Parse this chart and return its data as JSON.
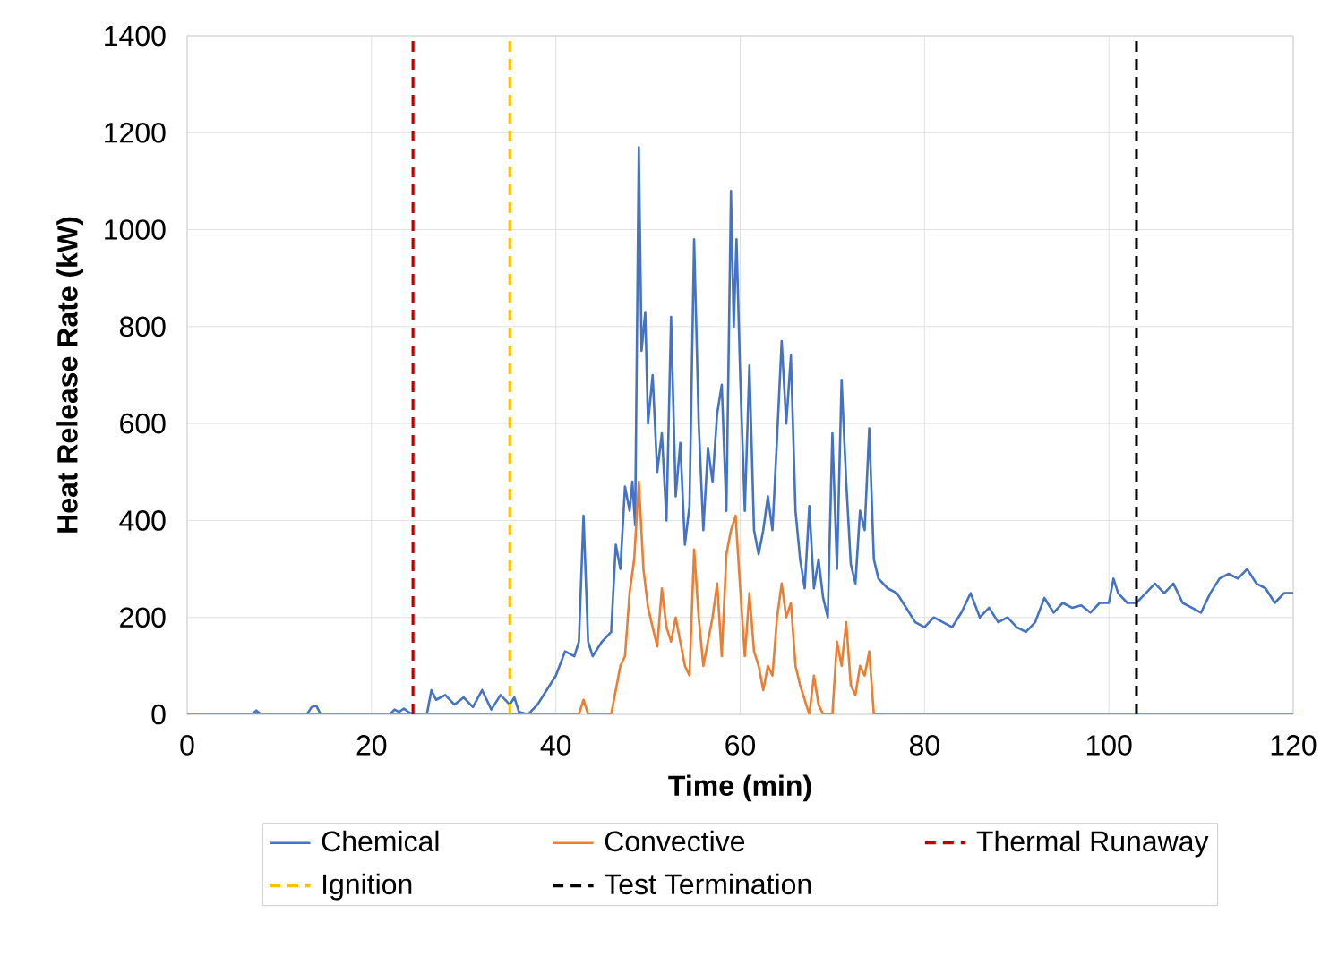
{
  "chart_data": {
    "type": "line",
    "xlabel": "Time (min)",
    "ylabel": "Heat Release Rate (kW)",
    "xlim": [
      0,
      120
    ],
    "xticks": [
      0,
      20,
      40,
      60,
      80,
      100,
      120
    ],
    "ylim": [
      0,
      1400
    ],
    "yticks": [
      0,
      200,
      400,
      600,
      800,
      1000,
      1200,
      1400
    ],
    "grid": true,
    "legend": "bottom",
    "line_style": "solid",
    "series": [
      {
        "name": "Chemical",
        "color": "#4472c4",
        "x": [
          0,
          7,
          7.5,
          8,
          13,
          13.5,
          14,
          14.5,
          22,
          22.5,
          23,
          23.5,
          24,
          24.5,
          26,
          26.5,
          27,
          28,
          29,
          30,
          31,
          32,
          33,
          34,
          35,
          35.5,
          36,
          37,
          38,
          39,
          40,
          41,
          42,
          42.5,
          43,
          43.5,
          44,
          45,
          46,
          46.5,
          47,
          47.5,
          48,
          48.3,
          48.6,
          49,
          49.3,
          49.7,
          50,
          50.5,
          51,
          51.5,
          52,
          52.5,
          53,
          53.5,
          54,
          54.5,
          55,
          55.5,
          56,
          56.5,
          57,
          57.5,
          58,
          58.5,
          59,
          59.3,
          59.6,
          60,
          60.5,
          61,
          61.5,
          62,
          62.5,
          63,
          63.5,
          64,
          64.5,
          65,
          65.5,
          66,
          66.5,
          67,
          67.5,
          68,
          68.5,
          69,
          69.5,
          70,
          70.5,
          71,
          71.5,
          72,
          72.5,
          73,
          73.5,
          74,
          74.5,
          75,
          76,
          77,
          78,
          79,
          80,
          81,
          82,
          83,
          84,
          85,
          86,
          87,
          88,
          89,
          90,
          91,
          92,
          93,
          94,
          95,
          96,
          97,
          98,
          99,
          100,
          100.5,
          101,
          102,
          103,
          104,
          105,
          106,
          107,
          108,
          109,
          110,
          111,
          112,
          113,
          114,
          115,
          116,
          117,
          118,
          119,
          120
        ],
        "values": [
          0,
          0,
          8,
          0,
          0,
          15,
          18,
          0,
          0,
          10,
          5,
          12,
          5,
          0,
          0,
          50,
          30,
          40,
          20,
          35,
          15,
          50,
          10,
          40,
          20,
          35,
          5,
          0,
          20,
          50,
          80,
          130,
          120,
          150,
          410,
          150,
          120,
          150,
          170,
          350,
          300,
          470,
          420,
          480,
          390,
          1170,
          750,
          830,
          600,
          700,
          500,
          580,
          400,
          820,
          450,
          560,
          350,
          430,
          980,
          600,
          380,
          550,
          480,
          620,
          680,
          420,
          1080,
          800,
          980,
          700,
          420,
          720,
          380,
          330,
          380,
          450,
          380,
          570,
          770,
          600,
          740,
          420,
          320,
          260,
          430,
          260,
          320,
          240,
          200,
          580,
          300,
          690,
          480,
          310,
          270,
          420,
          380,
          590,
          320,
          280,
          260,
          250,
          220,
          190,
          180,
          200,
          190,
          180,
          210,
          250,
          200,
          220,
          190,
          200,
          180,
          170,
          190,
          240,
          210,
          230,
          220,
          225,
          210,
          230,
          230,
          280,
          250,
          230,
          230,
          250,
          270,
          250,
          270,
          230,
          220,
          210,
          250,
          280,
          290,
          280,
          300,
          270,
          260,
          230,
          250,
          250
        ]
      },
      {
        "name": "Convective",
        "color": "#ed7d31",
        "x": [
          0,
          42.5,
          43,
          43.5,
          46,
          47,
          47.5,
          48,
          48.5,
          49,
          49.5,
          50,
          50.5,
          51,
          51.5,
          52,
          52.5,
          53,
          54,
          54.5,
          55,
          55.5,
          56,
          56.5,
          57,
          57.5,
          58,
          58.5,
          59,
          59.5,
          60,
          60.5,
          61,
          61.5,
          62,
          62.5,
          63,
          63.5,
          64,
          64.5,
          65,
          65.5,
          66,
          66.5,
          67,
          67.5,
          68,
          68.5,
          69,
          70,
          70.5,
          71,
          71.5,
          72,
          72.5,
          73,
          73.5,
          74,
          74.5,
          120
        ],
        "values": [
          0,
          0,
          30,
          0,
          0,
          100,
          120,
          250,
          320,
          480,
          300,
          220,
          180,
          140,
          260,
          180,
          150,
          200,
          100,
          80,
          340,
          200,
          100,
          150,
          200,
          270,
          120,
          330,
          380,
          410,
          260,
          120,
          250,
          130,
          100,
          50,
          100,
          80,
          200,
          270,
          200,
          230,
          100,
          60,
          30,
          0,
          80,
          20,
          0,
          0,
          150,
          100,
          190,
          60,
          40,
          100,
          80,
          130,
          0,
          0
        ]
      }
    ],
    "ref_lines": [
      {
        "axis": "x",
        "value": 24.5,
        "label": "Thermal Runaway",
        "color": "#c00000",
        "line_style": "dashed"
      },
      {
        "axis": "x",
        "value": 35,
        "label": "Ignition",
        "color": "#ffc000",
        "line_style": "dashed"
      },
      {
        "axis": "x",
        "value": 103,
        "label": "Test Termination",
        "color": "#000000",
        "line_style": "dashed"
      }
    ]
  }
}
